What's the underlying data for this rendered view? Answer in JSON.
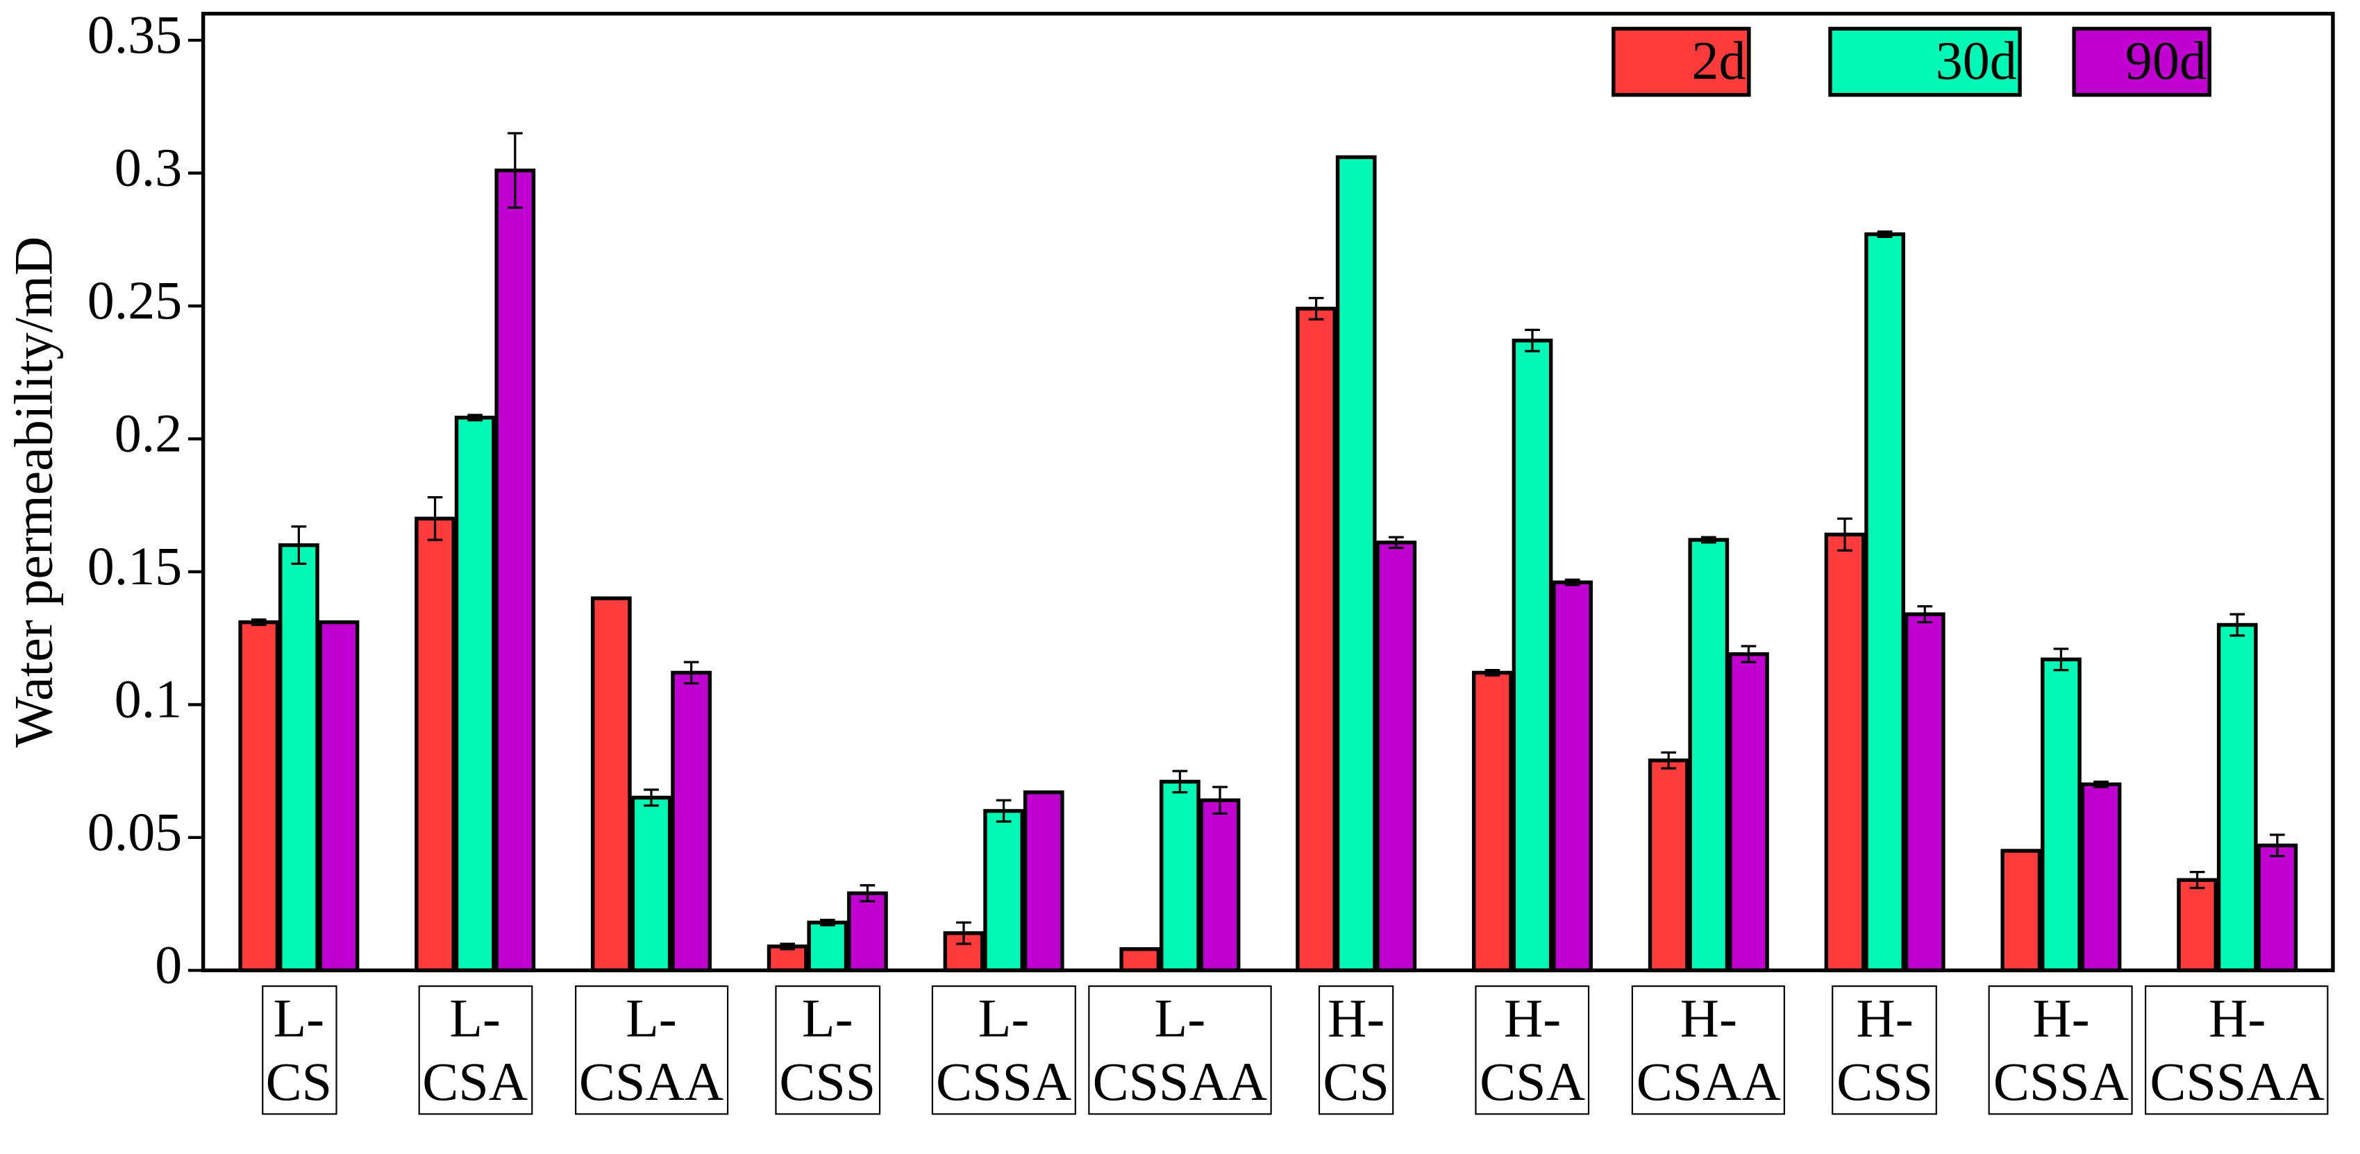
{
  "chart_data": {
    "type": "bar",
    "y_label": "Water permeability/mD",
    "categories": [
      "L-\nCS",
      "L-\nCSA",
      "L-\nCSAA",
      "L-\nCSS",
      "L-\nCSSA",
      "L-\nCSSAA",
      "H-\nCS",
      "H-\nCSA",
      "H-\nCSAA",
      "H-\nCSS",
      "H-\nCSSA",
      "H-\nCSSAA"
    ],
    "series": [
      {
        "name": "2d",
        "color": "#ff3b3b",
        "values": [
          0.131,
          0.17,
          0.14,
          0.009,
          0.014,
          0.008,
          0.249,
          0.112,
          0.079,
          0.164,
          0.045,
          0.034
        ],
        "errors": [
          0.001,
          0.008,
          null,
          0.001,
          0.004,
          null,
          0.004,
          0.001,
          0.003,
          0.006,
          null,
          0.003
        ]
      },
      {
        "name": "30d",
        "color": "#00f7b4",
        "values": [
          0.16,
          0.208,
          0.065,
          0.018,
          0.06,
          0.071,
          0.306,
          0.237,
          0.162,
          0.277,
          0.117,
          0.13
        ],
        "errors": [
          0.007,
          0.001,
          0.003,
          0.001,
          0.004,
          0.004,
          null,
          0.004,
          0.001,
          0.001,
          0.004,
          0.004
        ]
      },
      {
        "name": "90d",
        "color": "#c000d0",
        "values": [
          0.131,
          0.301,
          0.112,
          0.029,
          0.067,
          0.064,
          0.161,
          0.146,
          0.119,
          0.134,
          0.07,
          0.047
        ],
        "errors": [
          null,
          0.014,
          0.004,
          0.003,
          null,
          0.005,
          0.002,
          0.001,
          0.003,
          0.003,
          0.001,
          0.004
        ]
      }
    ],
    "ylim": [
      0,
      0.36
    ],
    "yticks": [
      0,
      0.05,
      0.1,
      0.15,
      0.2,
      0.25,
      0.3,
      0.35
    ],
    "legend": "upper right"
  }
}
